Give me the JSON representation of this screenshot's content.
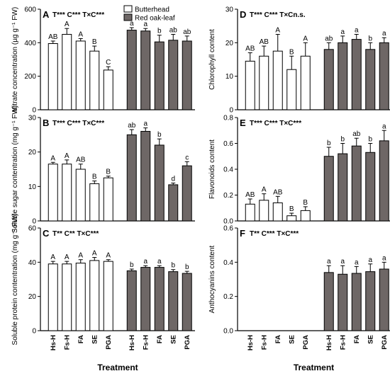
{
  "chart_data": {
    "type": "bar",
    "categories": [
      "Hs-H",
      "Fs-H",
      "FA",
      "SE",
      "PGA"
    ],
    "legend": [
      {
        "name": "Butterhead",
        "color": "#ffffff"
      },
      {
        "name": "Red oak-leaf",
        "color": "#6e6766"
      }
    ],
    "xlabel": "Treatment",
    "panels": [
      {
        "id": "A",
        "stat": "T*** C*** T×C***",
        "ylabel": "Nitrate concentration (µg g⁻¹ FW)",
        "ylim": [
          0,
          600
        ],
        "yticks": [
          0,
          200,
          400,
          600
        ],
        "series": [
          {
            "name": "Butterhead",
            "values": [
              395,
              450,
              410,
              350,
              237
            ],
            "errors": [
              15,
              35,
              15,
              30,
              20
            ],
            "labels": [
              "AB",
              "A",
              "A",
              "B",
              "C"
            ]
          },
          {
            "name": "Red oak-leaf",
            "values": [
              475,
              470,
              405,
              415,
              410
            ],
            "errors": [
              15,
              15,
              40,
              35,
              30
            ],
            "labels": [
              "a",
              "a",
              "b",
              "ab",
              "ab"
            ]
          }
        ]
      },
      {
        "id": "B",
        "stat": "T*** C*** T×C***",
        "ylabel": "Soluble sugar contentration (mg g⁻¹ FW)",
        "ylim": [
          0,
          30
        ],
        "yticks": [
          0,
          10,
          20,
          30
        ],
        "series": [
          {
            "name": "Butterhead",
            "values": [
              16.5,
              16.5,
              15,
              10.8,
              12.5
            ],
            "errors": [
              0.5,
              1.2,
              1.5,
              0.8,
              0.5
            ],
            "labels": [
              "A",
              "A",
              "AB",
              "B",
              "B"
            ]
          },
          {
            "name": "Red oak-leaf",
            "values": [
              25,
              26,
              22,
              10.5,
              16
            ],
            "errors": [
              1.5,
              1,
              1.8,
              0.5,
              1.2
            ],
            "labels": [
              "ab",
              "a",
              "b",
              "d",
              "c"
            ]
          }
        ]
      },
      {
        "id": "C",
        "stat": "T** C** T×C***",
        "ylabel": "Soluble protein contentration (mg g⁻¹ FW)",
        "ylim": [
          0,
          60
        ],
        "yticks": [
          0,
          20,
          40,
          60
        ],
        "series": [
          {
            "name": "Butterhead",
            "values": [
              39,
              39,
              39.5,
              41,
              40.5
            ],
            "errors": [
              1.5,
              1.5,
              2,
              1.8,
              1
            ],
            "labels": [
              "A",
              "A",
              "A",
              "A",
              "A"
            ]
          },
          {
            "name": "Red oak-leaf",
            "values": [
              35,
              37,
              37,
              34.5,
              33.5
            ],
            "errors": [
              1,
              1,
              1,
              1.2,
              1.2
            ],
            "labels": [
              "b",
              "a",
              "a",
              "b",
              "b"
            ]
          }
        ]
      },
      {
        "id": "D",
        "stat": "T*** C*** T×Cn.s.",
        "ylabel": "Chlorophyll content",
        "ylim": [
          0,
          30
        ],
        "yticks": [
          0,
          10,
          20,
          30
        ],
        "series": [
          {
            "name": "Butterhead",
            "values": [
              14.5,
              16,
              17.5,
              12,
              16
            ],
            "errors": [
              2.5,
              3,
              5,
              4,
              4
            ],
            "labels": [
              "AB",
              "AB",
              "A",
              "B",
              "A"
            ]
          },
          {
            "name": "Red oak-leaf",
            "values": [
              18,
              20,
              21,
              18,
              20
            ],
            "errors": [
              2,
              2,
              1.5,
              2,
              1.5
            ],
            "labels": [
              "ab",
              "a",
              "a",
              "b",
              "a"
            ]
          }
        ]
      },
      {
        "id": "E",
        "stat": "T*** C*** T×C***",
        "ylabel": "Flavonoids content",
        "ylim": [
          0,
          0.8
        ],
        "yticks": [
          0.0,
          0.2,
          0.4,
          0.6,
          0.8
        ],
        "series": [
          {
            "name": "Butterhead",
            "values": [
              0.13,
              0.16,
              0.14,
              0.04,
              0.08
            ],
            "errors": [
              0.04,
              0.05,
              0.05,
              0.02,
              0.03
            ],
            "labels": [
              "AB",
              "A",
              "AB",
              "B",
              "B"
            ]
          },
          {
            "name": "Red oak-leaf",
            "values": [
              0.5,
              0.52,
              0.58,
              0.53,
              0.62
            ],
            "errors": [
              0.07,
              0.08,
              0.06,
              0.07,
              0.08
            ],
            "labels": [
              "b",
              "b",
              "ab",
              "b",
              "a"
            ]
          }
        ]
      },
      {
        "id": "F",
        "stat": "T** C*** T×C***",
        "ylabel": "Anthocyanins content",
        "ylim": [
          0,
          0.6
        ],
        "yticks": [
          0.0,
          0.2,
          0.4,
          0.6
        ],
        "series": [
          {
            "name": "Butterhead",
            "values": [
              0,
              0,
              0,
              0,
              0
            ],
            "errors": [
              0,
              0,
              0,
              0,
              0
            ],
            "labels": [
              "",
              "",
              "",
              "",
              ""
            ]
          },
          {
            "name": "Red oak-leaf",
            "values": [
              0.34,
              0.33,
              0.335,
              0.345,
              0.36
            ],
            "errors": [
              0.04,
              0.05,
              0.04,
              0.045,
              0.04
            ],
            "labels": [
              "a",
              "a",
              "a",
              "a",
              "a"
            ]
          }
        ]
      }
    ]
  }
}
